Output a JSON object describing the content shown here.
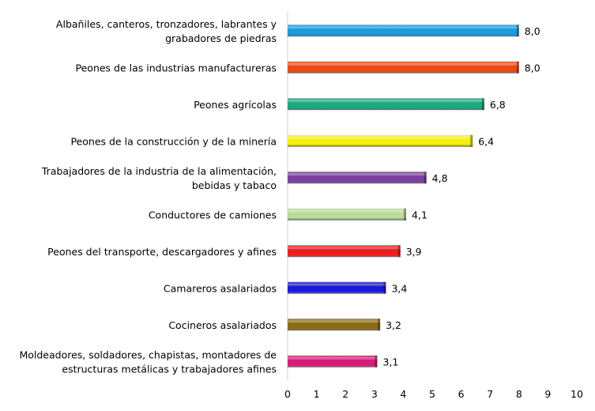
{
  "chart_data": {
    "type": "bar",
    "orientation": "horizontal",
    "categories": [
      [
        "Albañiles, canteros, tronzadores, labrantes y",
        "grabadores de piedras"
      ],
      [
        "Peones de las industrias manufactureras"
      ],
      [
        "Peones agrícolas"
      ],
      [
        "Peones de la construcción y de la minería"
      ],
      [
        "Trabajadores de la industria de la alimentación,",
        "bebidas y tabaco"
      ],
      [
        "Conductores de camiones"
      ],
      [
        "Peones del transporte, descargadores y afines"
      ],
      [
        "Camareros asalariados"
      ],
      [
        "Cocineros asalariados"
      ],
      [
        "Moldeadores, soldadores, chapistas, montadores de",
        "estructuras metálicas y trabajadores afines"
      ]
    ],
    "values": [
      8.0,
      8.0,
      6.8,
      6.4,
      4.8,
      4.1,
      3.9,
      3.4,
      3.2,
      3.1
    ],
    "data_labels": [
      "8,0",
      "8,0",
      "6,8",
      "6,4",
      "4,8",
      "4,1",
      "3,9",
      "3,4",
      "3,2",
      "3,1"
    ],
    "colors": [
      "#1a9be0",
      "#f04a14",
      "#1fa882",
      "#f3ef12",
      "#7b3f9e",
      "#b9dc9a",
      "#ee1c1c",
      "#1a1ad6",
      "#8c6c12",
      "#d81b78"
    ],
    "xlim": [
      0,
      10
    ],
    "xticks": [
      "0",
      "1",
      "2",
      "3",
      "4",
      "5",
      "6",
      "7",
      "8",
      "9",
      "10"
    ],
    "title": "",
    "xlabel": "",
    "ylabel": "",
    "grid": false,
    "legend": "none"
  }
}
